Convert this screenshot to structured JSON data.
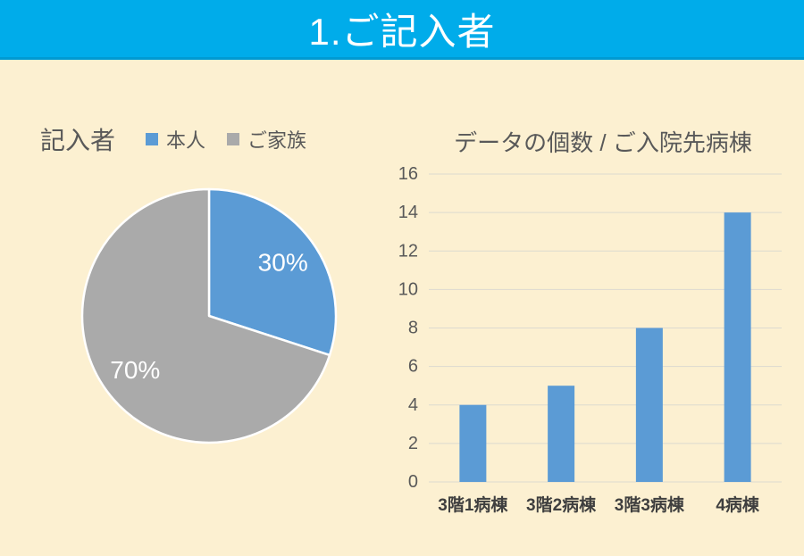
{
  "header": {
    "title": "1.ご記入者"
  },
  "colors": {
    "banner_blue": "#00ACEA",
    "background_cream": "#FCF0D1",
    "series_blue": "#5B9BD5",
    "series_gray": "#AAAAAA",
    "text_gray": "#595959",
    "axis_label_gray": "#3F3F3F",
    "gridline": "#DCDAD0",
    "pie_label_white": "#FFFFFF"
  },
  "chart_data": [
    {
      "type": "pie",
      "title": "記入者",
      "labels": [
        "本人",
        "ご家族"
      ],
      "values": [
        30,
        70
      ],
      "value_labels": [
        "30%",
        "70%"
      ],
      "colors": [
        "#5B9BD5",
        "#AAAAAA"
      ],
      "legend_position": "top",
      "start_angle_deg": 0,
      "direction": "clockwise"
    },
    {
      "type": "bar",
      "title": "データの個数 / ご入院先病棟",
      "categories": [
        "3階1病棟",
        "3階2病棟",
        "3階3病棟",
        "4病棟"
      ],
      "values": [
        4,
        5,
        8,
        14
      ],
      "ylim": [
        0,
        16
      ],
      "ytick_step": 2,
      "ytick_labels": [
        "0",
        "2",
        "4",
        "6",
        "8",
        "10",
        "12",
        "14",
        "16"
      ],
      "bar_color": "#5B9BD5",
      "grid": true,
      "legend": false
    }
  ]
}
